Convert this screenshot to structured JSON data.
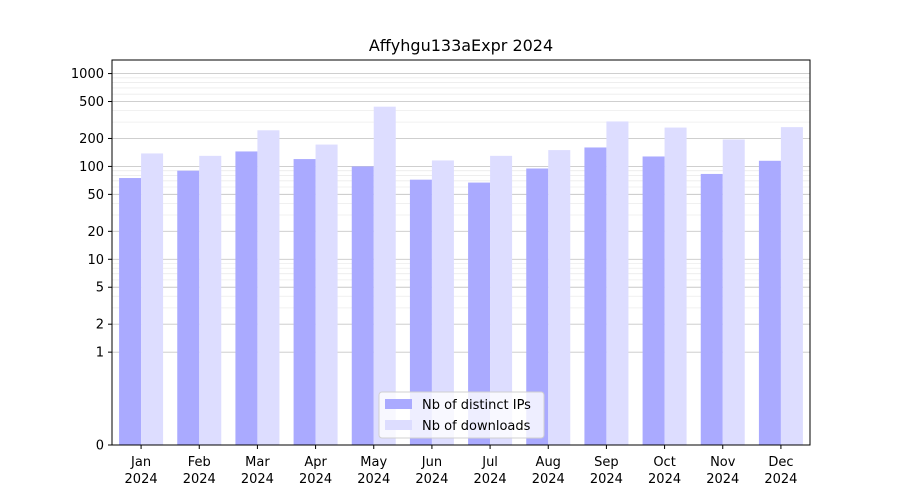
{
  "chart_data": {
    "type": "bar",
    "title": "Affyhgu133aExpr 2024",
    "xlabel": "",
    "ylabel": "",
    "y_scale": "symlog",
    "ylim": [
      0,
      1400
    ],
    "y_ticks": [
      0,
      1,
      2,
      5,
      10,
      20,
      50,
      100,
      200,
      500,
      1000
    ],
    "grid": "horizontal",
    "legend_position": "bottom-center",
    "categories": [
      {
        "month": "Jan",
        "year": "2024"
      },
      {
        "month": "Feb",
        "year": "2024"
      },
      {
        "month": "Mar",
        "year": "2024"
      },
      {
        "month": "Apr",
        "year": "2024"
      },
      {
        "month": "May",
        "year": "2024"
      },
      {
        "month": "Jun",
        "year": "2024"
      },
      {
        "month": "Jul",
        "year": "2024"
      },
      {
        "month": "Aug",
        "year": "2024"
      },
      {
        "month": "Sep",
        "year": "2024"
      },
      {
        "month": "Oct",
        "year": "2024"
      },
      {
        "month": "Nov",
        "year": "2024"
      },
      {
        "month": "Dec",
        "year": "2024"
      }
    ],
    "series": [
      {
        "name": "Nb of distinct IPs",
        "color": "#aaaaff",
        "values": [
          75,
          90,
          145,
          120,
          100,
          72,
          67,
          95,
          160,
          128,
          83,
          115
        ]
      },
      {
        "name": "Nb of downloads",
        "color": "#ddddff",
        "values": [
          138,
          130,
          245,
          172,
          440,
          116,
          130,
          150,
          305,
          262,
          195,
          265
        ]
      }
    ]
  }
}
